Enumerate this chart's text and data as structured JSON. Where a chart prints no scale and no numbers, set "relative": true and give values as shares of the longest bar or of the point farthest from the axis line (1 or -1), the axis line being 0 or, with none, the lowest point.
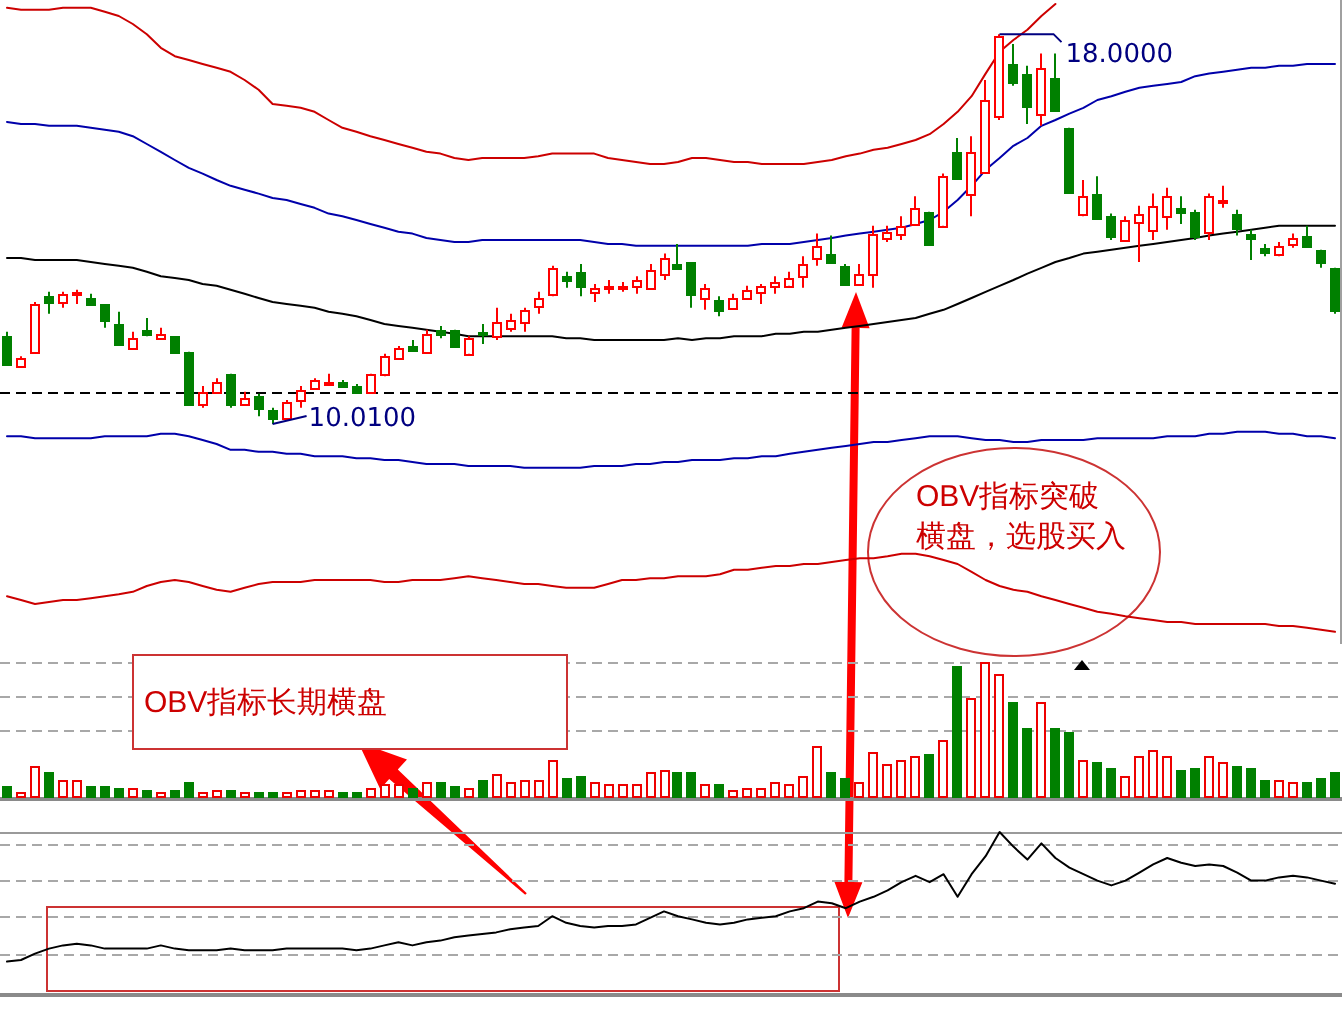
{
  "chart_data": [
    {
      "type": "candlestick",
      "ylim": [
        5.5,
        18.7
      ],
      "categories": [
        null,
        null,
        null,
        null,
        null,
        null,
        null,
        null,
        null,
        null,
        null,
        null,
        null,
        null,
        null,
        null,
        null,
        null,
        null,
        null,
        null,
        null,
        null,
        null,
        null,
        null,
        null,
        null,
        null,
        null,
        null,
        null,
        null,
        null,
        null,
        null,
        null,
        null,
        null,
        null,
        null,
        null,
        null,
        null,
        null,
        null,
        null,
        null,
        null,
        null,
        null,
        null,
        null,
        null,
        null,
        null,
        null,
        null,
        null,
        null,
        null,
        null,
        null,
        null,
        null,
        null,
        null,
        null,
        null,
        null,
        null,
        null,
        null,
        null,
        null,
        null,
        null,
        null,
        null,
        null,
        null,
        null,
        null,
        null,
        null,
        null,
        null,
        null,
        null,
        null,
        null,
        null,
        null,
        null,
        null,
        null
      ],
      "ohlc": [
        [
          11.81,
          11.9,
          11.2,
          11.24
        ],
        [
          11.2,
          11.4,
          11.16,
          11.36
        ],
        [
          11.49,
          12.51,
          11.45,
          12.47
        ],
        [
          12.63,
          12.72,
          12.27,
          12.51
        ],
        [
          12.51,
          12.72,
          12.39,
          12.68
        ],
        [
          12.68,
          12.76,
          12.47,
          12.72
        ],
        [
          12.59,
          12.68,
          12.47,
          12.47
        ],
        [
          12.47,
          12.47,
          11.98,
          12.14
        ],
        [
          12.06,
          12.31,
          11.61,
          11.65
        ],
        [
          11.57,
          11.9,
          11.53,
          11.77
        ],
        [
          11.94,
          12.18,
          11.81,
          11.86
        ],
        [
          11.77,
          11.98,
          11.73,
          11.86
        ],
        [
          11.81,
          11.81,
          11.49,
          11.49
        ],
        [
          11.49,
          11.49,
          10.42,
          10.42
        ],
        [
          10.42,
          10.79,
          10.34,
          10.67
        ],
        [
          10.67,
          10.95,
          10.63,
          10.87
        ],
        [
          11.04,
          11.04,
          10.34,
          10.42
        ],
        [
          10.42,
          10.67,
          10.42,
          10.54
        ],
        [
          10.58,
          10.63,
          10.17,
          10.34
        ],
        [
          10.3,
          10.34,
          10.01,
          10.13
        ],
        [
          10.13,
          10.5,
          10.09,
          10.46
        ],
        [
          10.5,
          10.79,
          10.34,
          10.71
        ],
        [
          10.75,
          10.95,
          10.71,
          10.91
        ],
        [
          10.83,
          11.04,
          10.79,
          10.87
        ],
        [
          10.87,
          10.91,
          10.79,
          10.79
        ],
        [
          10.79,
          10.83,
          10.63,
          10.67
        ],
        [
          10.67,
          11.04,
          10.63,
          11.04
        ],
        [
          11.04,
          11.45,
          10.99,
          11.4
        ],
        [
          11.36,
          11.61,
          11.32,
          11.57
        ],
        [
          11.61,
          11.73,
          11.49,
          11.53
        ],
        [
          11.49,
          11.94,
          11.45,
          11.86
        ],
        [
          11.94,
          12.02,
          11.77,
          11.86
        ],
        [
          11.94,
          11.94,
          11.61,
          11.61
        ],
        [
          11.45,
          11.81,
          11.45,
          11.77
        ],
        [
          11.9,
          12.06,
          11.65,
          11.86
        ],
        [
          11.81,
          12.39,
          11.73,
          12.1
        ],
        [
          11.98,
          12.27,
          11.9,
          12.14
        ],
        [
          12.1,
          12.39,
          11.9,
          12.35
        ],
        [
          12.43,
          12.72,
          12.27,
          12.59
        ],
        [
          12.68,
          13.25,
          12.63,
          13.21
        ],
        [
          13.04,
          13.13,
          12.8,
          12.96
        ],
        [
          13.13,
          13.29,
          12.63,
          12.84
        ],
        [
          12.72,
          12.88,
          12.51,
          12.8
        ],
        [
          12.8,
          12.96,
          12.68,
          12.84
        ],
        [
          12.8,
          12.92,
          12.72,
          12.84
        ],
        [
          12.84,
          13.04,
          12.68,
          12.96
        ],
        [
          12.8,
          13.29,
          12.76,
          13.17
        ],
        [
          13.09,
          13.5,
          12.96,
          13.41
        ],
        [
          13.29,
          13.7,
          13.21,
          13.21
        ],
        [
          13.33,
          13.33,
          12.39,
          12.68
        ],
        [
          12.59,
          12.88,
          12.35,
          12.8
        ],
        [
          12.55,
          12.63,
          12.22,
          12.35
        ],
        [
          12.39,
          12.68,
          12.35,
          12.59
        ],
        [
          12.59,
          12.84,
          12.55,
          12.76
        ],
        [
          12.72,
          12.88,
          12.47,
          12.84
        ],
        [
          12.84,
          13.04,
          12.68,
          12.92
        ],
        [
          12.84,
          13.13,
          12.84,
          13.0
        ],
        [
          13.04,
          13.45,
          12.8,
          13.29
        ],
        [
          13.41,
          13.91,
          13.25,
          13.66
        ],
        [
          13.5,
          13.87,
          13.29,
          13.33
        ],
        [
          13.25,
          13.29,
          12.84,
          12.88
        ],
        [
          12.88,
          13.29,
          12.84,
          13.09
        ],
        [
          13.09,
          14.07,
          12.8,
          13.91
        ],
        [
          13.82,
          14.07,
          13.74,
          13.95
        ],
        [
          13.91,
          14.27,
          13.78,
          14.07
        ],
        [
          14.11,
          14.68,
          14.07,
          14.44
        ],
        [
          14.36,
          14.36,
          13.66,
          13.7
        ],
        [
          14.07,
          15.14,
          14.07,
          15.09
        ],
        [
          15.59,
          15.87,
          15.01,
          15.05
        ],
        [
          14.73,
          15.91,
          14.27,
          15.59
        ],
        [
          15.18,
          17.06,
          15.14,
          16.65
        ],
        [
          16.32,
          18.0,
          16.24,
          17.96
        ],
        [
          17.39,
          17.8,
          16.94,
          17.02
        ],
        [
          17.19,
          17.35,
          16.16,
          16.53
        ],
        [
          16.37,
          17.6,
          16.12,
          17.31
        ],
        [
          17.1,
          17.6,
          16.45,
          16.45
        ],
        [
          16.08,
          16.08,
          14.77,
          14.77
        ],
        [
          14.32,
          15.01,
          14.27,
          14.68
        ],
        [
          14.73,
          15.09,
          14.19,
          14.23
        ],
        [
          14.27,
          14.32,
          13.78,
          13.87
        ],
        [
          13.78,
          14.27,
          13.74,
          14.19
        ],
        [
          14.15,
          14.48,
          13.33,
          14.32
        ],
        [
          13.99,
          14.73,
          13.78,
          14.48
        ],
        [
          14.27,
          14.85,
          13.99,
          14.68
        ],
        [
          14.44,
          14.68,
          14.11,
          14.36
        ],
        [
          14.36,
          14.4,
          13.78,
          13.87
        ],
        [
          13.95,
          14.73,
          13.78,
          14.68
        ],
        [
          14.56,
          14.89,
          14.44,
          14.6
        ],
        [
          14.32,
          14.4,
          13.87,
          14.03
        ],
        [
          13.91,
          13.99,
          13.37,
          13.82
        ],
        [
          13.62,
          13.7,
          13.45,
          13.54
        ],
        [
          13.5,
          13.74,
          13.45,
          13.66
        ],
        [
          13.7,
          13.91,
          13.62,
          13.82
        ],
        [
          13.87,
          14.07,
          13.62,
          13.66
        ],
        [
          13.58,
          13.58,
          13.21,
          13.33
        ],
        [
          13.21,
          13.21,
          12.27,
          12.35
        ]
      ],
      "series": [
        {
          "type": "line",
          "color": "#cc0000",
          "values": [
            18.54,
            18.5,
            18.5,
            18.5,
            18.54,
            18.54,
            18.54,
            18.46,
            18.37,
            18.21,
            18.0,
            17.72,
            17.55,
            17.47,
            17.39,
            17.31,
            17.23,
            17.06,
            16.86,
            16.57,
            16.53,
            16.49,
            16.41,
            16.24,
            16.08,
            16.0,
            15.91,
            15.83,
            15.75,
            15.67,
            15.59,
            15.55,
            15.46,
            15.42,
            15.46,
            15.46,
            15.46,
            15.46,
            15.5,
            15.55,
            15.55,
            15.55,
            15.55,
            15.46,
            15.42,
            15.38,
            15.34,
            15.34,
            15.38,
            15.46,
            15.46,
            15.42,
            15.38,
            15.38,
            15.34,
            15.34,
            15.34,
            15.34,
            15.38,
            15.42,
            15.5,
            15.55,
            15.63,
            15.67,
            15.75,
            15.83,
            15.95,
            16.16,
            16.41,
            16.73,
            17.19,
            17.64,
            17.88,
            18.09,
            18.37,
            18.62,
            null,
            null,
            null,
            null,
            null,
            null,
            null,
            null,
            null,
            null,
            null,
            null,
            null,
            null,
            null,
            null,
            null,
            null,
            null,
            null
          ]
        },
        {
          "type": "line",
          "color": "#0000aa",
          "values": [
            16.2,
            16.16,
            16.16,
            16.12,
            16.12,
            16.12,
            16.08,
            16.04,
            16.0,
            15.91,
            15.75,
            15.59,
            15.42,
            15.26,
            15.14,
            15.01,
            14.89,
            14.81,
            14.73,
            14.64,
            14.6,
            14.52,
            14.44,
            14.32,
            14.27,
            14.19,
            14.11,
            14.03,
            13.95,
            13.91,
            13.82,
            13.78,
            13.74,
            13.74,
            13.78,
            13.78,
            13.78,
            13.78,
            13.78,
            13.78,
            13.78,
            13.78,
            13.74,
            13.7,
            13.7,
            13.66,
            13.66,
            13.66,
            13.66,
            13.66,
            13.66,
            13.66,
            13.66,
            13.66,
            13.7,
            13.7,
            13.7,
            13.74,
            13.78,
            13.82,
            13.87,
            13.91,
            13.95,
            13.99,
            14.03,
            14.11,
            14.19,
            14.36,
            14.6,
            14.89,
            15.22,
            15.46,
            15.71,
            15.87,
            16.12,
            16.24,
            16.37,
            16.49,
            16.65,
            16.73,
            16.82,
            16.9,
            16.94,
            16.98,
            17.02,
            17.14,
            17.19,
            17.23,
            17.27,
            17.31,
            17.31,
            17.35,
            17.35,
            17.39,
            17.39,
            17.39
          ]
        },
        {
          "type": "line",
          "color": "#000000",
          "values": [
            13.41,
            13.41,
            13.37,
            13.37,
            13.37,
            13.37,
            13.33,
            13.29,
            13.25,
            13.21,
            13.13,
            13.04,
            13.0,
            12.96,
            12.88,
            12.84,
            12.76,
            12.68,
            12.59,
            12.51,
            12.47,
            12.43,
            12.39,
            12.31,
            12.27,
            12.22,
            12.14,
            12.06,
            12.02,
            11.98,
            11.94,
            11.9,
            11.86,
            11.81,
            11.81,
            11.81,
            11.81,
            11.81,
            11.81,
            11.81,
            11.77,
            11.77,
            11.73,
            11.73,
            11.73,
            11.73,
            11.73,
            11.73,
            11.77,
            11.73,
            11.77,
            11.77,
            11.81,
            11.81,
            11.81,
            11.86,
            11.86,
            11.9,
            11.9,
            11.94,
            11.98,
            12.02,
            12.06,
            12.1,
            12.14,
            12.18,
            12.27,
            12.35,
            12.47,
            12.59,
            12.72,
            12.84,
            12.96,
            13.09,
            13.21,
            13.33,
            13.41,
            13.5,
            13.54,
            13.58,
            13.62,
            13.66,
            13.7,
            13.74,
            13.78,
            13.82,
            13.87,
            13.91,
            13.95,
            13.99,
            14.03,
            14.07,
            14.07,
            14.07,
            14.07,
            14.07
          ]
        },
        {
          "type": "line",
          "color": "#0000aa",
          "values": [
            9.76,
            9.76,
            9.72,
            9.72,
            9.72,
            9.72,
            9.72,
            9.76,
            9.76,
            9.76,
            9.76,
            9.81,
            9.81,
            9.76,
            9.68,
            9.6,
            9.48,
            9.48,
            9.44,
            9.44,
            9.4,
            9.4,
            9.35,
            9.35,
            9.35,
            9.31,
            9.31,
            9.27,
            9.27,
            9.23,
            9.19,
            9.19,
            9.19,
            9.15,
            9.15,
            9.15,
            9.15,
            9.11,
            9.11,
            9.11,
            9.11,
            9.11,
            9.15,
            9.15,
            9.15,
            9.19,
            9.19,
            9.23,
            9.23,
            9.27,
            9.27,
            9.27,
            9.31,
            9.31,
            9.35,
            9.35,
            9.4,
            9.44,
            9.48,
            9.52,
            9.56,
            9.6,
            9.64,
            9.64,
            9.68,
            9.72,
            9.76,
            9.76,
            9.76,
            9.72,
            9.68,
            9.68,
            9.64,
            9.64,
            9.68,
            9.68,
            9.68,
            9.68,
            9.72,
            9.72,
            9.72,
            9.72,
            9.72,
            9.76,
            9.76,
            9.76,
            9.81,
            9.81,
            9.85,
            9.85,
            9.85,
            9.81,
            9.81,
            9.76,
            9.76,
            9.72
          ]
        },
        {
          "type": "line",
          "color": "#cc0000",
          "values": [
            6.48,
            6.4,
            6.32,
            6.36,
            6.4,
            6.4,
            6.44,
            6.48,
            6.52,
            6.57,
            6.69,
            6.77,
            6.81,
            6.77,
            6.69,
            6.61,
            6.57,
            6.65,
            6.73,
            6.77,
            6.77,
            6.77,
            6.81,
            6.81,
            6.81,
            6.81,
            6.81,
            6.77,
            6.77,
            6.81,
            6.81,
            6.81,
            6.85,
            6.89,
            6.85,
            6.81,
            6.77,
            6.73,
            6.73,
            6.69,
            6.65,
            6.65,
            6.65,
            6.73,
            6.81,
            6.81,
            6.85,
            6.85,
            6.89,
            6.89,
            6.89,
            6.93,
            7.02,
            7.02,
            7.06,
            7.1,
            7.1,
            7.14,
            7.14,
            7.18,
            7.22,
            7.26,
            7.26,
            7.3,
            7.35,
            7.35,
            7.3,
            7.22,
            7.14,
            6.98,
            6.81,
            6.69,
            6.61,
            6.57,
            6.48,
            6.4,
            6.32,
            6.24,
            6.16,
            6.12,
            6.07,
            6.03,
            5.99,
            5.95,
            5.95,
            5.91,
            5.91,
            5.91,
            5.91,
            5.91,
            5.91,
            5.87,
            5.87,
            5.83,
            5.79,
            5.75
          ]
        }
      ],
      "ref_lines": [
        {
          "axis": "y",
          "value": 10.67,
          "color": "#000000",
          "line_style": "dashed"
        }
      ],
      "annotations": [
        "18.0000",
        "10.0100"
      ]
    },
    {
      "type": "bar",
      "relative": true,
      "categories": [
        null,
        null,
        null,
        null,
        null,
        null,
        null,
        null,
        null,
        null,
        null,
        null,
        null,
        null,
        null,
        null,
        null,
        null,
        null,
        null,
        null,
        null,
        null,
        null,
        null,
        null,
        null,
        null,
        null,
        null,
        null,
        null,
        null,
        null,
        null,
        null,
        null,
        null,
        null,
        null,
        null,
        null,
        null,
        null,
        null,
        null,
        null,
        null,
        null,
        null,
        null,
        null,
        null,
        null,
        null,
        null,
        null,
        null,
        null,
        null,
        null,
        null,
        null,
        null,
        null,
        null,
        null,
        null,
        null,
        null,
        null,
        null,
        null,
        null,
        null,
        null,
        null,
        null,
        null,
        null,
        null,
        null,
        null,
        null,
        null,
        null,
        null,
        null,
        null,
        null,
        null,
        null,
        null,
        null,
        null,
        null
      ],
      "series": [
        {
          "color": "#ee0000",
          "values": [
            null,
            0.04,
            0.24,
            null,
            0.13,
            0.13,
            null,
            null,
            null,
            0.07,
            null,
            0.04,
            null,
            null,
            0.04,
            0.06,
            null,
            0.04,
            null,
            null,
            0.04,
            0.06,
            0.06,
            0.06,
            null,
            null,
            0.07,
            0.1,
            0.1,
            null,
            0.12,
            null,
            null,
            0.07,
            null,
            0.18,
            0.12,
            0.13,
            0.13,
            0.28,
            null,
            null,
            0.12,
            0.1,
            0.1,
            0.1,
            0.19,
            0.21,
            null,
            null,
            0.1,
            null,
            0.06,
            0.07,
            0.07,
            0.12,
            0.1,
            0.16,
            0.38,
            null,
            null,
            0.12,
            0.34,
            0.25,
            0.28,
            0.31,
            null,
            0.43,
            null,
            0.74,
            1,
            0.91,
            null,
            null,
            0.71,
            null,
            null,
            0.28,
            null,
            null,
            0.16,
            0.31,
            0.35,
            0.31,
            null,
            null,
            0.31,
            0.26,
            null,
            null,
            null,
            0.13,
            0.12,
            null,
            null,
            null
          ]
        },
        {
          "color": "#008000",
          "values": [
            0.09,
            null,
            null,
            0.19,
            null,
            null,
            0.09,
            0.09,
            0.07,
            null,
            0.06,
            null,
            0.06,
            0.12,
            null,
            null,
            0.06,
            null,
            0.04,
            0.04,
            null,
            null,
            null,
            null,
            0.04,
            0.04,
            null,
            null,
            null,
            0.07,
            null,
            0.12,
            0.09,
            null,
            0.13,
            null,
            null,
            null,
            null,
            null,
            0.15,
            0.16,
            null,
            null,
            null,
            null,
            null,
            null,
            0.19,
            0.19,
            null,
            0.1,
            null,
            null,
            null,
            null,
            null,
            null,
            null,
            0.19,
            0.15,
            null,
            null,
            null,
            null,
            null,
            0.32,
            null,
            0.97,
            null,
            null,
            null,
            0.71,
            0.51,
            null,
            0.51,
            0.49,
            null,
            0.26,
            0.22,
            null,
            null,
            null,
            null,
            0.21,
            0.22,
            null,
            null,
            0.24,
            0.22,
            0.13,
            null,
            null,
            0.12,
            0.15,
            0.19
          ]
        }
      ],
      "ref_lines": [
        {
          "axis": "y",
          "value": 1,
          "color": "#a8a8a8",
          "line_style": "dashed"
        },
        {
          "axis": "y",
          "value": 0.75,
          "color": "#a8a8a8",
          "line_style": "dashed"
        },
        {
          "axis": "y",
          "value": 0.5,
          "color": "#a8a8a8",
          "line_style": "dashed"
        }
      ]
    },
    {
      "type": "line",
      "relative": true,
      "categories": [
        null,
        null,
        null,
        null,
        null,
        null,
        null,
        null,
        null,
        null,
        null,
        null,
        null,
        null,
        null,
        null,
        null,
        null,
        null,
        null,
        null,
        null,
        null,
        null,
        null,
        null,
        null,
        null,
        null,
        null,
        null,
        null,
        null,
        null,
        null,
        null,
        null,
        null,
        null,
        null,
        null,
        null,
        null,
        null,
        null,
        null,
        null,
        null,
        null,
        null,
        null,
        null,
        null,
        null,
        null,
        null,
        null,
        null,
        null,
        null,
        null,
        null,
        null,
        null,
        null,
        null,
        null,
        null,
        null,
        null,
        null,
        null,
        null,
        null,
        null,
        null,
        null,
        null,
        null,
        null,
        null,
        null,
        null,
        null,
        null,
        null,
        null,
        null,
        null,
        null,
        null,
        null,
        null,
        null,
        null,
        null
      ],
      "series": [
        {
          "color": "#000000",
          "values": [
            0.2,
            0.21,
            0.25,
            0.28,
            0.3,
            0.31,
            0.3,
            0.28,
            0.28,
            0.28,
            0.28,
            0.3,
            0.28,
            0.27,
            0.27,
            0.27,
            0.28,
            0.27,
            0.27,
            0.27,
            0.28,
            0.28,
            0.28,
            0.28,
            0.28,
            0.27,
            0.28,
            0.3,
            0.32,
            0.3,
            0.32,
            0.33,
            0.35,
            0.36,
            0.37,
            0.38,
            0.4,
            0.41,
            0.42,
            0.48,
            0.44,
            0.42,
            0.41,
            0.42,
            0.42,
            0.43,
            0.47,
            0.51,
            0.48,
            0.46,
            0.44,
            0.43,
            0.44,
            0.46,
            0.47,
            0.48,
            0.51,
            0.53,
            0.57,
            0.56,
            0.53,
            0.57,
            0.6,
            0.64,
            0.69,
            0.73,
            0.69,
            0.74,
            0.6,
            0.74,
            0.85,
            1,
            0.91,
            0.83,
            0.93,
            0.84,
            0.78,
            0.74,
            0.7,
            0.67,
            0.7,
            0.75,
            0.8,
            0.84,
            0.81,
            0.79,
            0.8,
            0.79,
            0.75,
            0.7,
            0.7,
            0.72,
            0.73,
            0.72,
            0.7,
            0.68
          ]
        }
      ],
      "ref_lines": [
        {
          "axis": "y",
          "value": 0.92,
          "color": "#a8a8a8",
          "line_style": "dashed"
        },
        {
          "axis": "y",
          "value": 0.7,
          "color": "#a8a8a8",
          "line_style": "dashed"
        },
        {
          "axis": "y",
          "value": 0.48,
          "color": "#a8a8a8",
          "line_style": "dashed"
        },
        {
          "axis": "y",
          "value": 0.25,
          "color": "#a8a8a8",
          "line_style": "dashed"
        }
      ],
      "annotations": [
        "OBV指标长期横盘",
        "OBV指标突破横盘，选股买入"
      ]
    }
  ]
}
